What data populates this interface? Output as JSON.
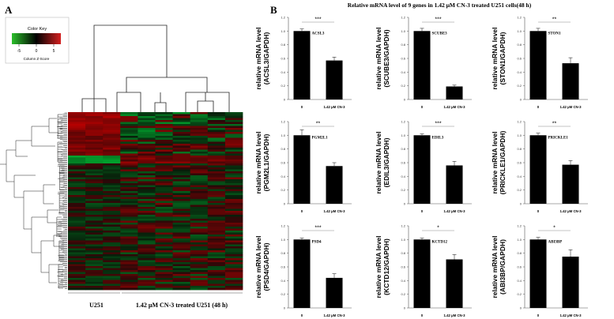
{
  "panels": {
    "a": {
      "letter": "A"
    },
    "b": {
      "letter": "B",
      "title": "Relative mRNA level of 9 genes in 1.42 μM CN-3 treated U251 cells(48 h)"
    }
  },
  "heatmap": {
    "color_key": {
      "title": "Color Key",
      "ticks": [
        "-5",
        "0",
        "5"
      ],
      "xlabel": "Column Z-Score",
      "low_color": "#2bbf2b",
      "mid_color": "#000000",
      "high_color": "#d42020"
    },
    "group_labels": [
      "U251",
      "1.42 μM CN-3 treated U251 (48 h)"
    ]
  },
  "colors": {
    "bar": "#000000",
    "error": "#333333",
    "axis": "#555555"
  },
  "chart_data": [
    {
      "type": "bar",
      "gene": "ACSL3",
      "ylabel": "relative mRNA level\n(ACSL3/GAPDH)",
      "categories": [
        "0",
        "1.42 μM CN-3"
      ],
      "values": [
        1.0,
        0.57
      ],
      "errors": [
        0.03,
        0.05
      ],
      "significance": "***",
      "yticks": [
        "0",
        "0.2",
        "0.4",
        "0.6",
        "0.8",
        "1.0",
        "1.2"
      ],
      "ylim": [
        0,
        1.2
      ]
    },
    {
      "type": "bar",
      "gene": "SCUBE3",
      "ylabel": "relative mRNA level\n(SCUBE3/GAPDH)",
      "categories": [
        "0",
        "1.42 μM CN-3"
      ],
      "values": [
        1.0,
        0.19
      ],
      "errors": [
        0.04,
        0.02
      ],
      "significance": "***",
      "yticks": [
        "0",
        "0.2",
        "0.4",
        "0.6",
        "0.8",
        "1.0",
        "1.2"
      ],
      "ylim": [
        0,
        1.2
      ]
    },
    {
      "type": "bar",
      "gene": "STON1",
      "ylabel": "relative mRNA level\n(STON1/GAPDH)",
      "categories": [
        "0",
        "1.42 μM CN-3"
      ],
      "values": [
        1.0,
        0.53
      ],
      "errors": [
        0.04,
        0.08
      ],
      "significance": "**",
      "yticks": [
        "0",
        "0.2",
        "0.4",
        "0.6",
        "0.8",
        "1.0",
        "1.2"
      ],
      "ylim": [
        0,
        1.2
      ]
    },
    {
      "type": "bar",
      "gene": "PGM2L1",
      "ylabel": "relative mRNA level\n(PGM2L1/GAPDH)",
      "categories": [
        "0",
        "1.42 μM CN-3"
      ],
      "values": [
        1.0,
        0.55
      ],
      "errors": [
        0.08,
        0.05
      ],
      "significance": "**",
      "yticks": [
        "0",
        "0.2",
        "0.4",
        "0.6",
        "0.8",
        "1.0",
        "1.2"
      ],
      "ylim": [
        0,
        1.2
      ]
    },
    {
      "type": "bar",
      "gene": "EDIL3",
      "ylabel": "relative mRNA level\n(EDIL3/GAPDH)",
      "categories": [
        "0",
        "1.42 μM CN-3"
      ],
      "values": [
        1.0,
        0.56
      ],
      "errors": [
        0.02,
        0.06
      ],
      "significance": "***",
      "yticks": [
        "0",
        "0.2",
        "0.4",
        "0.6",
        "0.8",
        "1.0",
        "1.2"
      ],
      "ylim": [
        0,
        1.2
      ]
    },
    {
      "type": "bar",
      "gene": "PRICKLE1",
      "ylabel": "relative mRNA level\n(PRICKLE1/GAPDH)",
      "categories": [
        "0",
        "1.42 μM CN-3"
      ],
      "values": [
        1.0,
        0.57
      ],
      "errors": [
        0.03,
        0.06
      ],
      "significance": "**",
      "yticks": [
        "0",
        "0.2",
        "0.4",
        "0.6",
        "0.8",
        "1.0",
        "1.2"
      ],
      "ylim": [
        0,
        1.2
      ]
    },
    {
      "type": "bar",
      "gene": "PSD4",
      "ylabel": "relative mRNA level\n(PSD4/GAPDH)",
      "categories": [
        "0",
        "1.42 μM CN-3"
      ],
      "values": [
        1.0,
        0.44
      ],
      "errors": [
        0.02,
        0.06
      ],
      "significance": "***",
      "yticks": [
        "0",
        "0.2",
        "0.4",
        "0.6",
        "0.8",
        "1.0",
        "1.2"
      ],
      "ylim": [
        0,
        1.2
      ]
    },
    {
      "type": "bar",
      "gene": "KCTD12",
      "ylabel": "relative mRNA level\n(KCTD12/GAPDH)",
      "categories": [
        "0",
        "1.42 μM CN-3"
      ],
      "values": [
        1.0,
        0.71
      ],
      "errors": [
        0.02,
        0.07
      ],
      "significance": "*",
      "yticks": [
        "0",
        "0.2",
        "0.4",
        "0.6",
        "0.8",
        "1.0",
        "1.2"
      ],
      "ylim": [
        0,
        1.2
      ]
    },
    {
      "type": "bar",
      "gene": "ABI3BP",
      "ylabel": "relative mRNA level\n(ABI3BP/GAPDH)",
      "categories": [
        "0",
        "1.42 μM CN-3"
      ],
      "values": [
        1.0,
        0.75
      ],
      "errors": [
        0.03,
        0.1
      ],
      "significance": "*",
      "yticks": [
        "0",
        "0.2",
        "0.4",
        "0.6",
        "0.8",
        "1.0",
        "1.2"
      ],
      "ylim": [
        0,
        1.2
      ]
    }
  ]
}
